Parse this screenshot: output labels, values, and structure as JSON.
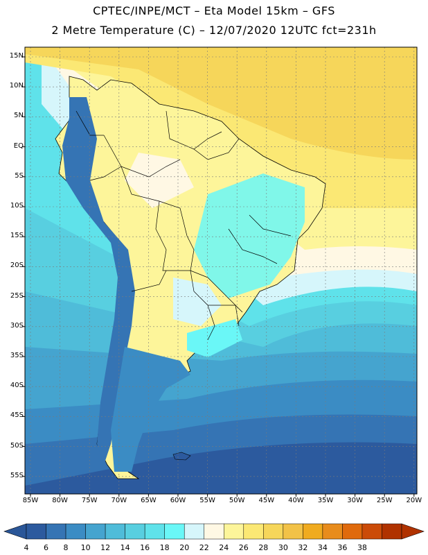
{
  "header": {
    "line1": "CPTEC/INPE/MCT –  Eta Model 15km – GFS",
    "line2": "2 Metre Temperature (C) – 12/07/2020 12UTC fct=231h"
  },
  "lat_labels": [
    "15N",
    "10N",
    "5N",
    "EQ",
    "5S",
    "10S",
    "15S",
    "20S",
    "25S",
    "30S",
    "35S",
    "40S",
    "45S",
    "50S",
    "55S"
  ],
  "lon_labels": [
    "85W",
    "80W",
    "75W",
    "70W",
    "65W",
    "60W",
    "55W",
    "50W",
    "45W",
    "40W",
    "35W",
    "30W",
    "25W",
    "20W"
  ],
  "colorbar": {
    "labels": [
      "4",
      "6",
      "8",
      "10",
      "12",
      "14",
      "16",
      "18",
      "20",
      "22",
      "24",
      "26",
      "28",
      "30",
      "32",
      "34",
      "36",
      "38"
    ],
    "colors": [
      "#2c5a9e",
      "#3574b4",
      "#3b8cc4",
      "#45a4cf",
      "#4fbcd9",
      "#58cfe0",
      "#5fe2ea",
      "#6af7f7",
      "#d6f6fb",
      "#fff8e4",
      "#fdf59a",
      "#fbe874",
      "#f6d65a",
      "#f2c247",
      "#f0ab1f",
      "#e88c1c",
      "#e06a0c",
      "#cb4b08",
      "#b03200"
    ],
    "left_end_color": "#2a5698",
    "right_end_color": "#b03200"
  },
  "map_colors": {
    "ocean_north": "#f5d64e",
    "ocean_north_light": "#fbe874",
    "ocean_mid": "#fdf59a",
    "ocean_cream": "#fff8e4",
    "ocean_cyan": "#58cfe0",
    "ocean_light_cyan": "#5fe2ea",
    "ocean_teal": "#45a4cf",
    "ocean_blue": "#3b8cc4",
    "ocean_deep": "#3574b4",
    "ocean_deepest": "#2c5a9e",
    "land_warm": "#fdf59a",
    "land_cool": "#fff8e4",
    "land_cold": "#6af7f7",
    "andes": "#3574b4",
    "border": "#000000"
  }
}
